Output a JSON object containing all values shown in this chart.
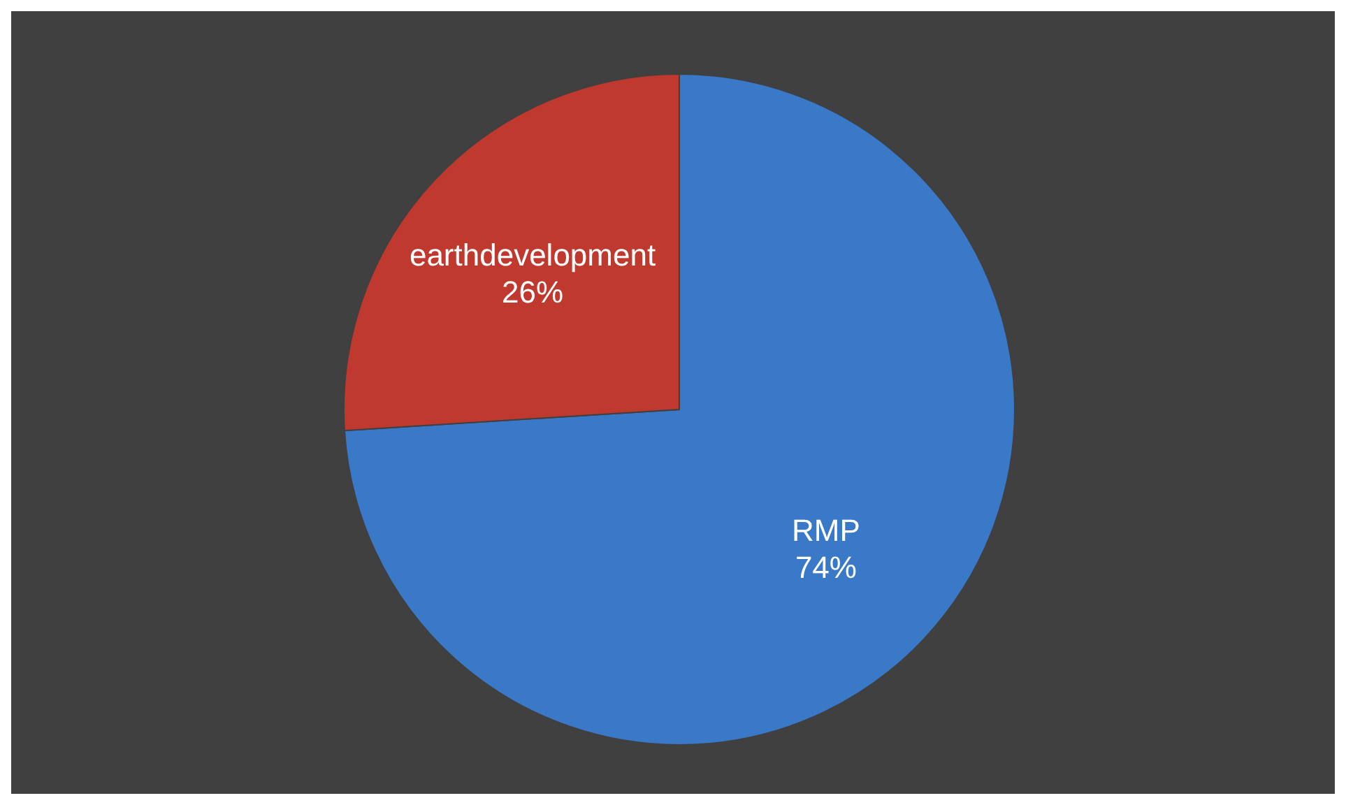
{
  "chart_data": {
    "type": "pie",
    "categories": [
      "RMP",
      "earthdevelopment"
    ],
    "values": [
      74,
      26
    ],
    "colors": [
      "#3a78c8",
      "#c0392f"
    ],
    "value_labels": [
      "74%",
      "26%"
    ]
  }
}
